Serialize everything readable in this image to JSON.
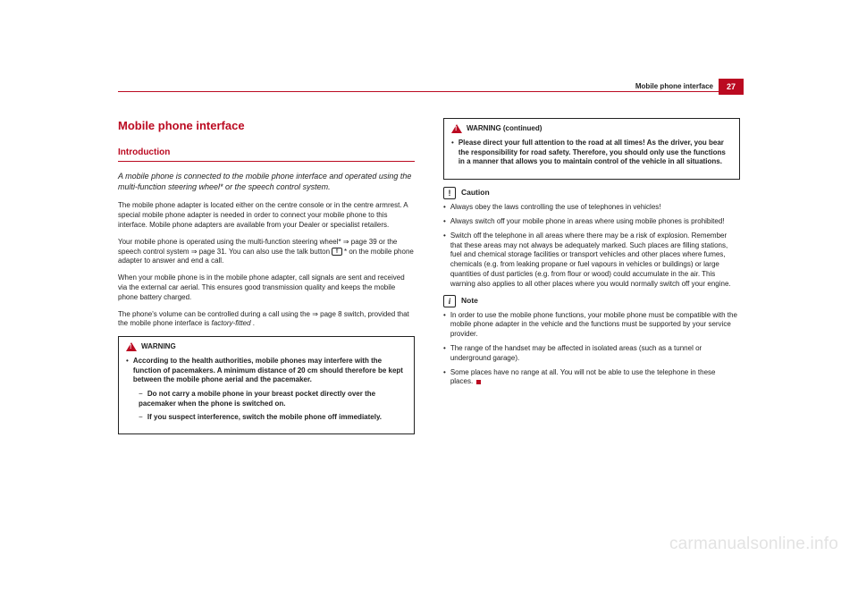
{
  "header": {
    "section_label": "Mobile phone interface",
    "page_number": "27"
  },
  "chapter_title": "Mobile phone interface",
  "section_title": "Introduction",
  "intro": "A mobile phone is connected to the mobile phone interface and operated using the multi-function steering wheel* or the speech control system.",
  "col1": {
    "p1": "The mobile phone adapter is located either on the centre console or in the centre armrest. A special mobile phone adapter is needed in order to connect your mobile phone to this interface. Mobile phone adapters are available from your Dealer or specialist retailers.",
    "p2a": "Your mobile phone is operated using the multi-function steering wheel* ⇒ page 39 or the speech control system ⇒ page 31. You can also use the talk button ",
    "p2_btn": "⇑",
    "p2b": "* on the mobile phone adapter to answer and end a call.",
    "p3": "When your mobile phone is in the mobile phone adapter, call signals are sent and received via the external car aerial. This ensures good transmission quality and keeps the mobile phone battery charged.",
    "p4a": "The phone's volume can be controlled during a call using the ⇒ page 8 switch, provided that the mobile phone interface is ",
    "p4b": "factory-fitted",
    "p4c": "."
  },
  "warning_box": {
    "title": "WARNING",
    "b1": "According to the health authorities, mobile phones may interfere with the function of pacemakers. A minimum distance of 20 cm should therefore be kept between the mobile phone aerial and the pacemaker.",
    "s1a": "Do not carry a mobile phone in your breast pocket directly over the pacemaker when the phone is switched on.",
    "s2a": "If you suspect interference, switch the mobile phone off immediately."
  },
  "warning_cont": {
    "title": "WARNING (continued)",
    "b1": "Please direct your full attention to the road at all times! As the driver, you bear the responsibility for road safety. Therefore, you should only use the functions in a manner that allows you to maintain control of the vehicle in all situations."
  },
  "caution": {
    "icon": "!",
    "title": "Caution",
    "b1": "Always obey the laws controlling the use of telephones in vehicles!",
    "b2": "Always switch off your mobile phone in areas where using mobile phones is prohibited!",
    "b3": "Switch off the telephone in all areas where there may be a risk of explosion. Remember that these areas may not always be adequately marked. Such places are filling stations, fuel and chemical storage facilities or transport vehicles and other places where fumes, chemicals (e.g. from leaking propane or fuel vapours in vehicles or buildings) or large quantities of dust particles (e.g. from flour or wood) could accumulate in the air. This warning also applies to all other places where you would normally switch off your engine."
  },
  "note": {
    "icon": "i",
    "title": "Note",
    "b1": "In order to use the mobile phone functions, your mobile phone must be compatible with the mobile phone adapter in the vehicle and the functions must be supported by your service provider.",
    "b2": "The range of the handset may be affected in isolated areas (such as a tunnel or underground garage).",
    "b3": "Some places have no range at all. You will not be able to use the telephone in these places."
  },
  "watermark": "carmanualsonline.info",
  "colors": {
    "accent": "#bb0a21",
    "text": "#222222",
    "watermark": "#e3e3e3",
    "background": "#ffffff"
  }
}
